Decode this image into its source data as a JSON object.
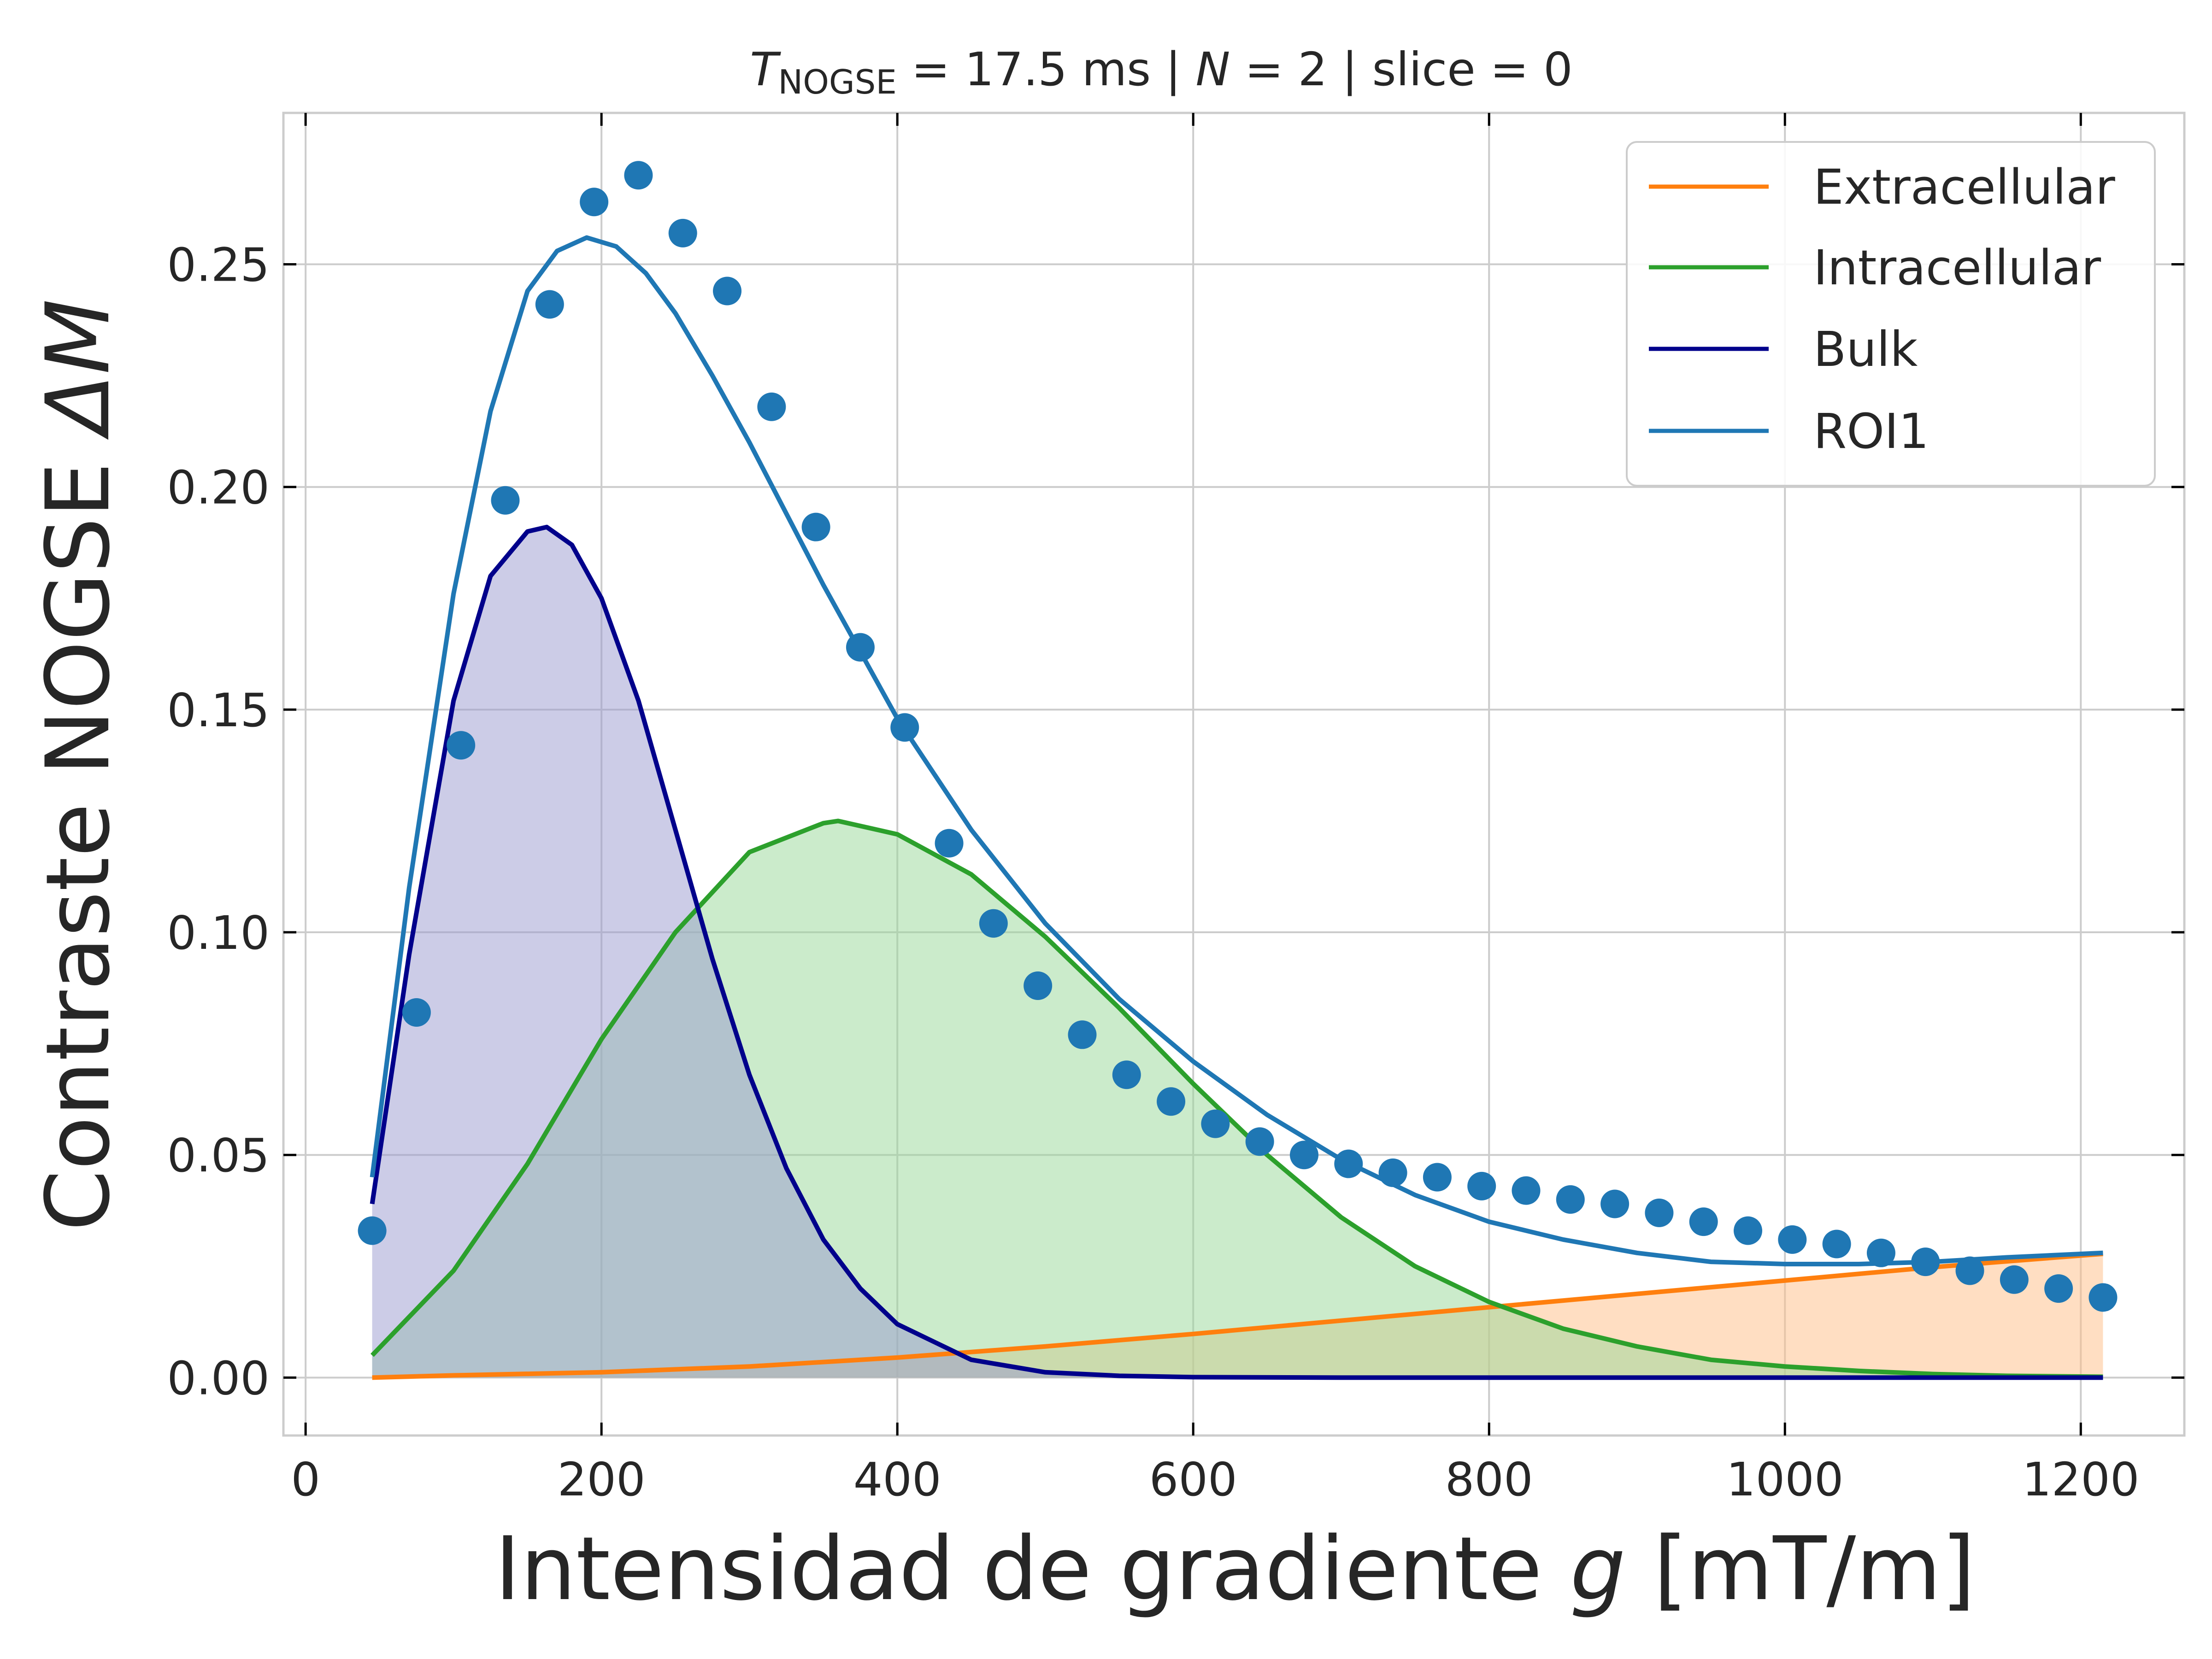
{
  "chart_data": {
    "type": "line",
    "title": {
      "t_symbol": "T",
      "t_subscript": "NOGSE",
      "part1": " = 17.5 ms  |  ",
      "n_symbol": "N",
      "part2": " = 2 | slice = 0"
    },
    "xlabel": {
      "text": "Intensidad de gradiente ",
      "var": "g",
      "unit": " [mT/m]"
    },
    "ylabel": {
      "text": "Contraste NOGSE ",
      "var": "ΔM"
    },
    "xlim": [
      -15,
      1270
    ],
    "ylim": [
      -0.013,
      0.284
    ],
    "x_ticks": [
      0,
      200,
      400,
      600,
      800,
      1000,
      1200
    ],
    "x_tick_labels": [
      "0",
      "200",
      "400",
      "600",
      "800",
      "1000",
      "1200"
    ],
    "y_ticks": [
      0.0,
      0.05,
      0.1,
      0.15,
      0.2,
      0.25
    ],
    "y_tick_labels": [
      "0.00",
      "0.05",
      "0.10",
      "0.15",
      "0.20",
      "0.25"
    ],
    "grid": true,
    "legend_position": "top-right",
    "series": [
      {
        "name": "Extracellular",
        "kind": "line",
        "color": "#ff7f0e",
        "fill": true,
        "fill_color": "#ffbe86",
        "x": [
          45,
          100,
          200,
          300,
          400,
          500,
          600,
          700,
          800,
          900,
          1000,
          1100,
          1215
        ],
        "y": [
          0.0,
          0.0005,
          0.0012,
          0.0025,
          0.0045,
          0.007,
          0.0098,
          0.0128,
          0.0158,
          0.0188,
          0.0218,
          0.0248,
          0.0278
        ]
      },
      {
        "name": "Intracellular",
        "kind": "line",
        "color": "#2ca02c",
        "fill": true,
        "fill_color": "#98d898",
        "x": [
          45,
          100,
          150,
          200,
          250,
          300,
          350,
          360,
          400,
          450,
          500,
          550,
          600,
          650,
          700,
          750,
          800,
          850,
          900,
          950,
          1000,
          1050,
          1100,
          1150,
          1215
        ],
        "y": [
          0.005,
          0.024,
          0.048,
          0.076,
          0.1,
          0.118,
          0.1245,
          0.125,
          0.122,
          0.113,
          0.099,
          0.083,
          0.066,
          0.05,
          0.036,
          0.025,
          0.017,
          0.011,
          0.007,
          0.004,
          0.0025,
          0.0015,
          0.0008,
          0.0004,
          0.0002
        ]
      },
      {
        "name": "Bulk",
        "kind": "line",
        "color": "#00008b",
        "fill": true,
        "fill_color": "#9999d0",
        "x": [
          45,
          70,
          100,
          125,
          150,
          163,
          180,
          200,
          225,
          250,
          275,
          300,
          325,
          350,
          375,
          400,
          450,
          500,
          550,
          600,
          700,
          800,
          1000,
          1215
        ],
        "y": [
          0.039,
          0.095,
          0.152,
          0.18,
          0.19,
          0.191,
          0.187,
          0.175,
          0.152,
          0.123,
          0.094,
          0.068,
          0.047,
          0.031,
          0.02,
          0.012,
          0.004,
          0.0012,
          0.0004,
          0.0001,
          0.0,
          0.0,
          0.0,
          0.0
        ]
      },
      {
        "name": "ROI1",
        "kind": "line",
        "color": "#1f77b4",
        "fill": false,
        "x": [
          45,
          70,
          100,
          125,
          150,
          170,
          190,
          210,
          230,
          250,
          275,
          300,
          350,
          400,
          450,
          500,
          550,
          600,
          650,
          700,
          750,
          800,
          850,
          900,
          950,
          1000,
          1050,
          1100,
          1150,
          1215
        ],
        "y": [
          0.045,
          0.11,
          0.176,
          0.217,
          0.244,
          0.253,
          0.256,
          0.254,
          0.248,
          0.239,
          0.225,
          0.21,
          0.178,
          0.148,
          0.123,
          0.102,
          0.085,
          0.071,
          0.059,
          0.049,
          0.041,
          0.035,
          0.031,
          0.028,
          0.026,
          0.0255,
          0.0255,
          0.026,
          0.027,
          0.028
        ]
      },
      {
        "name": "",
        "kind": "scatter",
        "color": "#1f77b4",
        "x": [
          45,
          75,
          105,
          135,
          165,
          195,
          225,
          255,
          285,
          315,
          345,
          375,
          405,
          435,
          465,
          495,
          525,
          555,
          585,
          615,
          645,
          675,
          705,
          735,
          765,
          795,
          825,
          855,
          885,
          915,
          945,
          975,
          1005,
          1035,
          1065,
          1095,
          1125,
          1155,
          1185,
          1215
        ],
        "y": [
          0.033,
          0.082,
          0.142,
          0.197,
          0.241,
          0.264,
          0.27,
          0.257,
          0.244,
          0.218,
          0.191,
          0.164,
          0.146,
          0.12,
          0.102,
          0.088,
          0.077,
          0.068,
          0.062,
          0.057,
          0.053,
          0.05,
          0.048,
          0.046,
          0.045,
          0.043,
          0.042,
          0.04,
          0.039,
          0.037,
          0.035,
          0.033,
          0.031,
          0.03,
          0.028,
          0.026,
          0.024,
          0.022,
          0.02,
          0.018
        ]
      }
    ]
  }
}
